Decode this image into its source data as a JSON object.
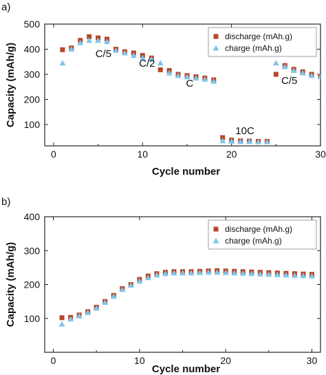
{
  "chart_data": [
    {
      "panel": "a)",
      "type": "scatter",
      "xlabel": "Cycle number",
      "ylabel": "Capacity (mAh/g)",
      "xlim": [
        -1,
        30
      ],
      "ylim": [
        15,
        500
      ],
      "xticks": [
        0,
        10,
        20,
        30
      ],
      "yticks": [
        100,
        200,
        300,
        400,
        500
      ],
      "legend": "top-right",
      "grid": false,
      "colors": {
        "discharge": "#b5472a",
        "charge": "#7ec6ec"
      },
      "series": [
        {
          "name": "discharge (mAh.g)",
          "marker": "square",
          "x": [
            1,
            2,
            3,
            4,
            5,
            6,
            7,
            8,
            9,
            10,
            11,
            12,
            13,
            14,
            15,
            16,
            17,
            18,
            19,
            20,
            21,
            22,
            23,
            24,
            25,
            26,
            27,
            28,
            29,
            30
          ],
          "y": [
            398,
            405,
            435,
            450,
            445,
            440,
            400,
            390,
            385,
            375,
            365,
            318,
            315,
            300,
            295,
            290,
            285,
            278,
            48,
            38,
            35,
            34,
            33,
            33,
            300,
            335,
            320,
            310,
            300,
            292
          ]
        },
        {
          "name": "charge (mAh.g)",
          "marker": "triangle",
          "x": [
            1,
            2,
            3,
            4,
            5,
            6,
            7,
            8,
            9,
            10,
            11,
            12,
            13,
            14,
            15,
            16,
            17,
            18,
            19,
            20,
            21,
            22,
            23,
            24,
            25,
            26,
            27,
            28,
            29,
            30
          ],
          "y": [
            345,
            400,
            425,
            435,
            435,
            430,
            395,
            385,
            375,
            365,
            360,
            345,
            305,
            295,
            290,
            285,
            280,
            272,
            35,
            33,
            32,
            32,
            31,
            31,
            345,
            330,
            315,
            305,
            295,
            290
          ]
        }
      ],
      "annotations": [
        {
          "text": "C/5",
          "x": 5.6,
          "y": 368
        },
        {
          "text": "C/2",
          "x": 10.5,
          "y": 330
        },
        {
          "text": "C",
          "x": 15.3,
          "y": 250
        },
        {
          "text": "10C",
          "x": 21.5,
          "y": 62
        },
        {
          "text": "C/5",
          "x": 26.5,
          "y": 262
        }
      ]
    },
    {
      "panel": "b)",
      "type": "scatter",
      "xlabel": "Cycle number",
      "ylabel": "Capacity (mAh/g)",
      "xlim": [
        -1,
        31
      ],
      "ylim": [
        0,
        400
      ],
      "xticks": [
        0,
        10,
        20,
        30
      ],
      "yticks": [
        100,
        200,
        300,
        400
      ],
      "legend": "top-right",
      "grid": false,
      "colors": {
        "discharge": "#b5472a",
        "charge": "#7ec6ec"
      },
      "series": [
        {
          "name": "discharge (mAh.g)",
          "marker": "square",
          "x": [
            1,
            2,
            3,
            4,
            5,
            6,
            7,
            8,
            9,
            10,
            11,
            12,
            13,
            14,
            15,
            16,
            17,
            18,
            19,
            20,
            21,
            22,
            23,
            24,
            25,
            26,
            27,
            28,
            29,
            30
          ],
          "y": [
            102,
            103,
            110,
            120,
            133,
            150,
            168,
            188,
            200,
            215,
            225,
            232,
            236,
            238,
            238,
            238,
            239,
            240,
            241,
            240,
            239,
            238,
            237,
            236,
            235,
            234,
            233,
            232,
            231,
            230
          ]
        },
        {
          "name": "charge (mAh.g)",
          "marker": "triangle",
          "x": [
            1,
            2,
            3,
            4,
            5,
            6,
            7,
            8,
            9,
            10,
            11,
            12,
            13,
            14,
            15,
            16,
            17,
            18,
            19,
            20,
            21,
            22,
            23,
            24,
            25,
            26,
            27,
            28,
            29,
            30
          ],
          "y": [
            83,
            98,
            107,
            117,
            130,
            147,
            165,
            185,
            198,
            210,
            220,
            228,
            232,
            234,
            234,
            234,
            235,
            236,
            236,
            235,
            234,
            233,
            232,
            231,
            230,
            229,
            228,
            227,
            226,
            225
          ]
        }
      ],
      "annotations": []
    }
  ]
}
